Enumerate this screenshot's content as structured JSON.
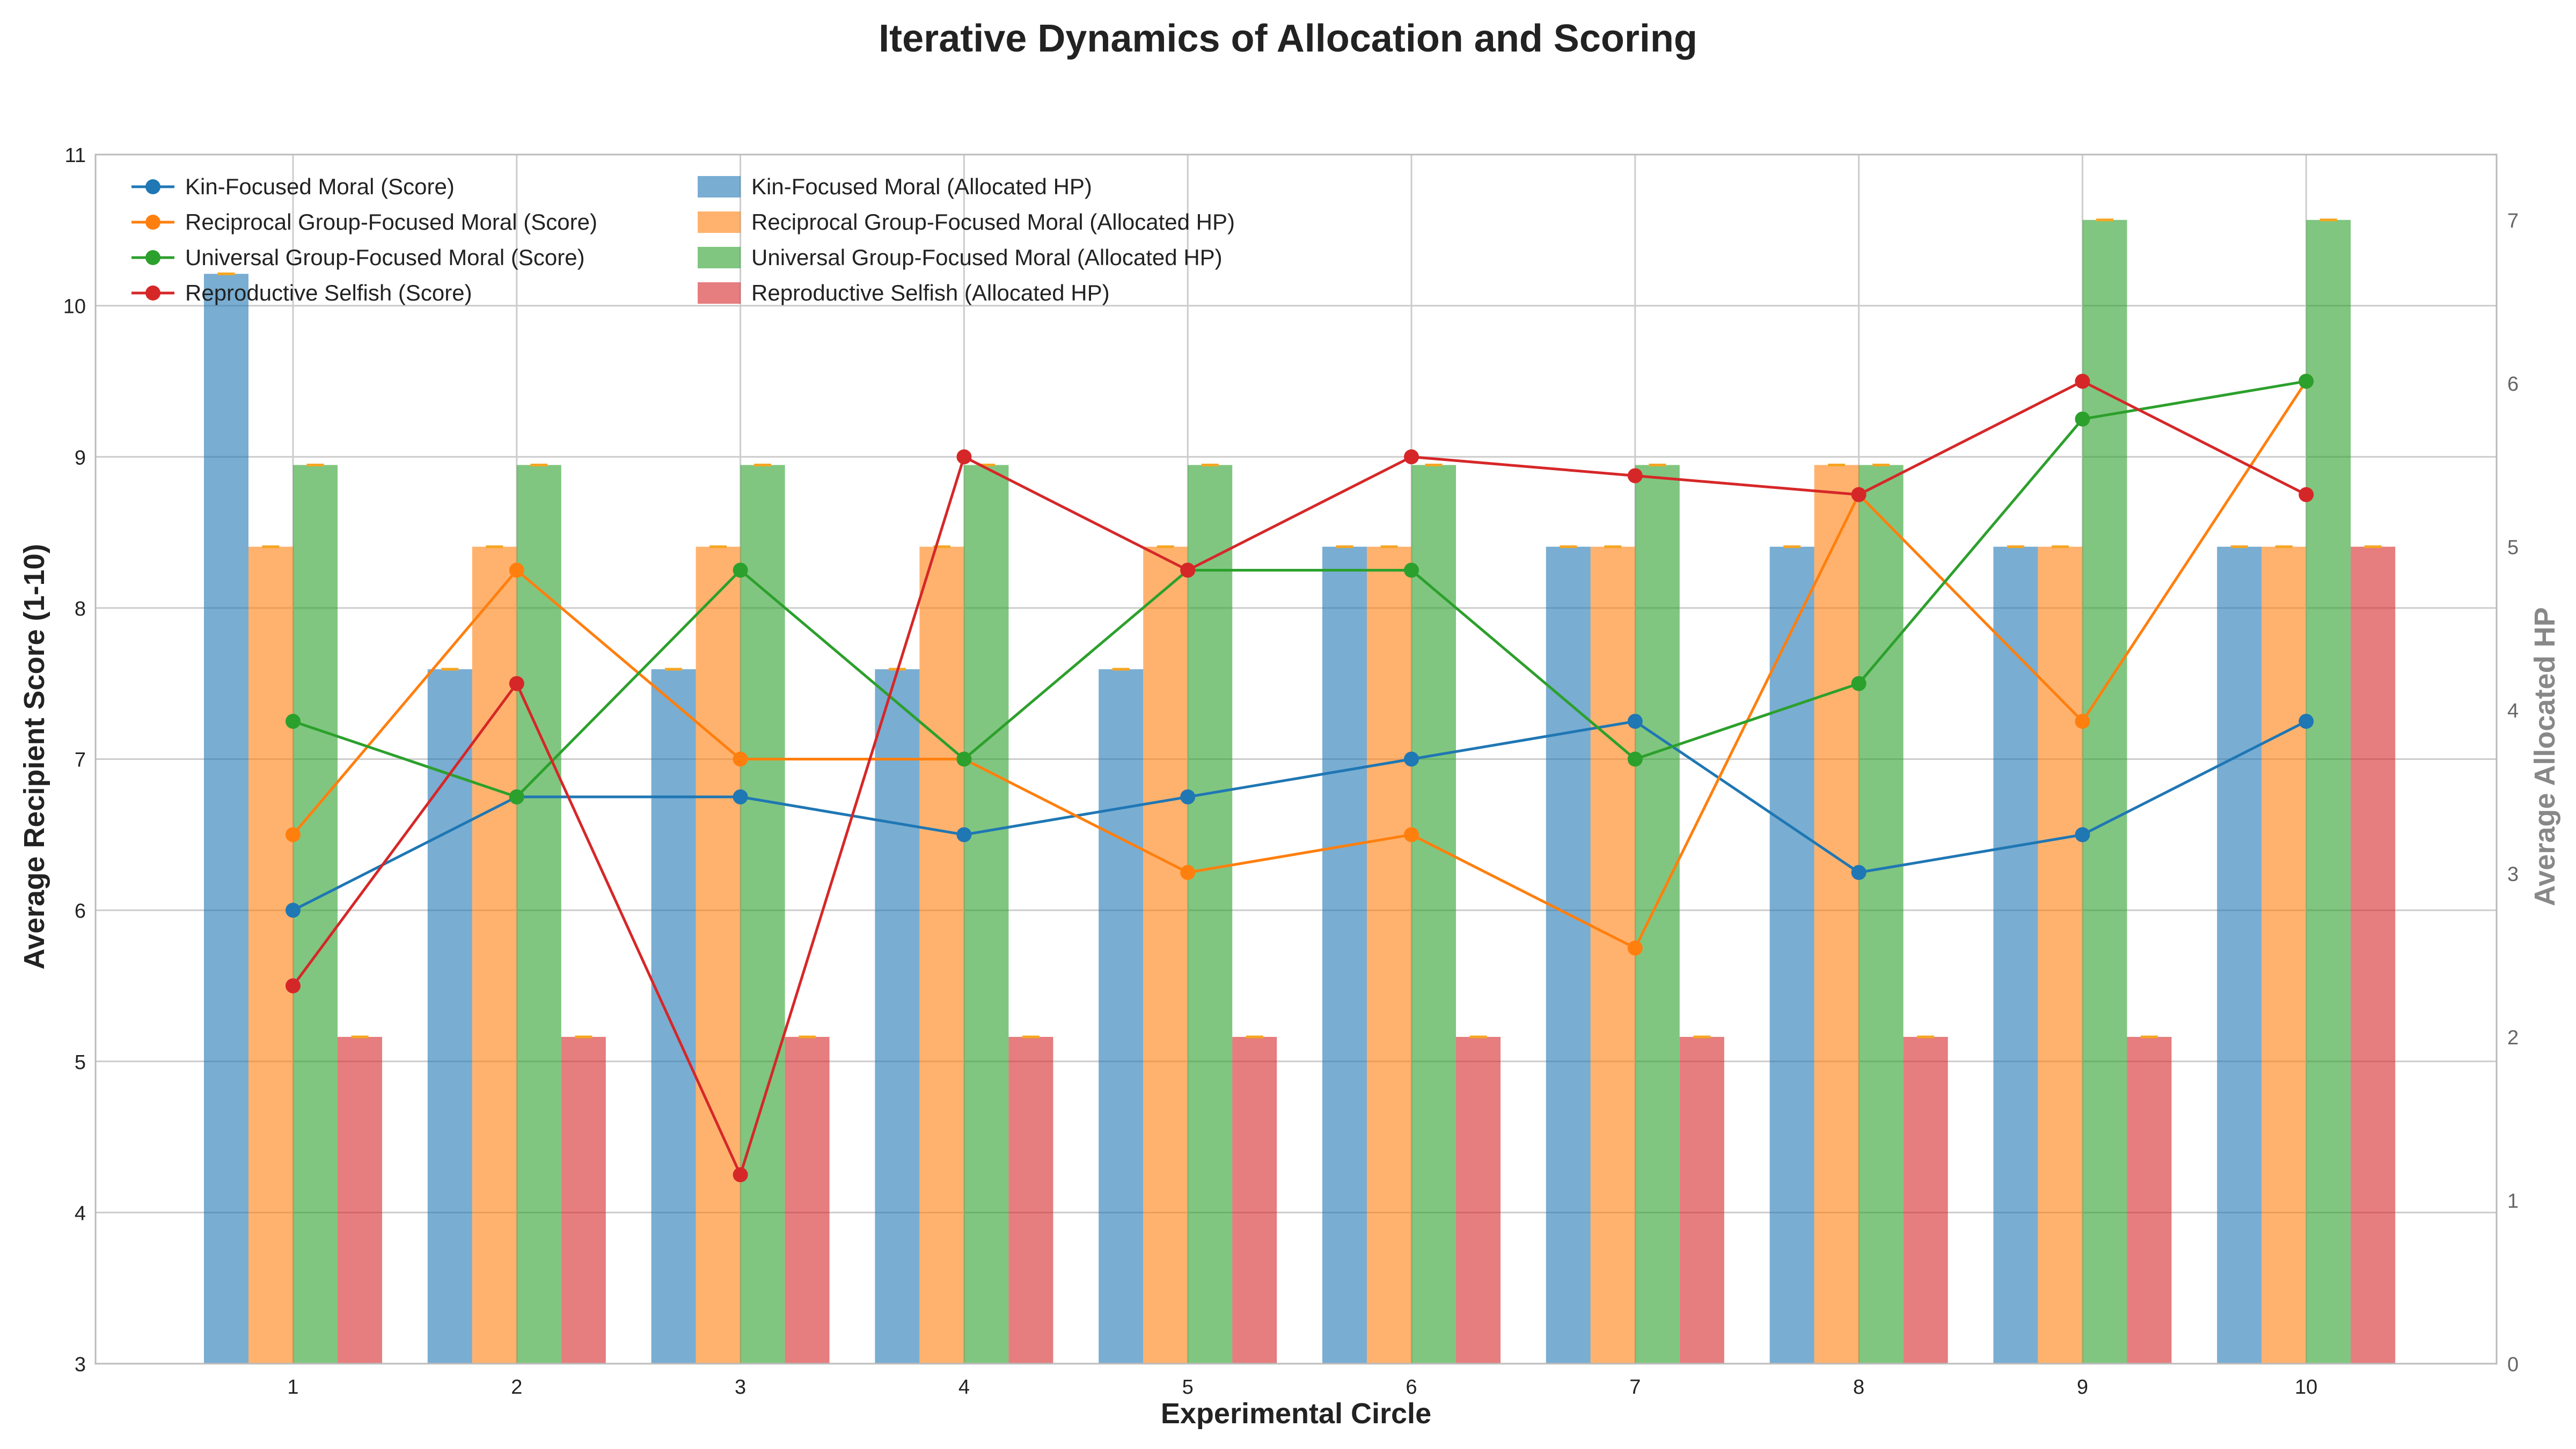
{
  "chart_data": {
    "type": "bar",
    "title": "Iterative Dynamics of Allocation and Scoring",
    "xlabel": "Experimental Circle",
    "ylabel": "Average Recipient Score (1-10)",
    "y2label": "Average Allocated HP",
    "categories": [
      "1",
      "2",
      "3",
      "4",
      "5",
      "6",
      "7",
      "8",
      "9",
      "10"
    ],
    "ylim": [
      3,
      11
    ],
    "y2lim": [
      0,
      7.4
    ],
    "yticks": [
      "3",
      "4",
      "5",
      "6",
      "7",
      "8",
      "9",
      "10",
      "11"
    ],
    "y2ticks": [
      "0",
      "1",
      "2",
      "3",
      "4",
      "5",
      "6",
      "7"
    ],
    "grid": true,
    "legend_position": "top-left",
    "line_series": [
      {
        "name": "Kin-Focused Moral (Score)",
        "color": "#1f77b4",
        "values": [
          6.0,
          6.75,
          6.75,
          6.5,
          6.75,
          7.0,
          7.25,
          6.25,
          6.5,
          7.25
        ]
      },
      {
        "name": "Reciprocal Group-Focused Moral (Score)",
        "color": "#ff7f0e",
        "values": [
          6.5,
          8.25,
          7.0,
          7.0,
          6.25,
          6.5,
          5.75,
          8.75,
          7.25,
          9.5
        ]
      },
      {
        "name": "Universal Group-Focused Moral (Score)",
        "color": "#2ca02c",
        "values": [
          7.25,
          6.75,
          8.25,
          7.0,
          8.25,
          8.25,
          7.0,
          7.5,
          9.25,
          9.5
        ]
      },
      {
        "name": "Reproductive Selfish (Score)",
        "color": "#d62728",
        "values": [
          5.5,
          7.5,
          4.25,
          9.0,
          8.25,
          9.0,
          8.875,
          8.75,
          9.5,
          8.75
        ]
      }
    ],
    "bar_series": [
      {
        "name": "Kin-Focused Moral (Allocated HP)",
        "color": "#1f77b4",
        "values": [
          6.67,
          4.25,
          4.25,
          4.25,
          4.25,
          5.0,
          5.0,
          5.0,
          5.0,
          5.0
        ]
      },
      {
        "name": "Reciprocal Group-Focused Moral (Allocated HP)",
        "color": "#ff7f0e",
        "values": [
          5.0,
          5.0,
          5.0,
          5.0,
          5.0,
          5.0,
          5.0,
          5.5,
          5.0,
          5.0
        ]
      },
      {
        "name": "Universal Group-Focused Moral (Allocated HP)",
        "color": "#2ca02c",
        "values": [
          5.5,
          5.5,
          5.5,
          5.5,
          5.5,
          5.5,
          5.5,
          5.5,
          7.0,
          7.0
        ]
      },
      {
        "name": "Reproductive Selfish (Allocated HP)",
        "color": "#d62728",
        "values": [
          2.0,
          2.0,
          2.0,
          2.0,
          2.0,
          2.0,
          2.0,
          2.0,
          2.0,
          5.0
        ]
      }
    ]
  }
}
